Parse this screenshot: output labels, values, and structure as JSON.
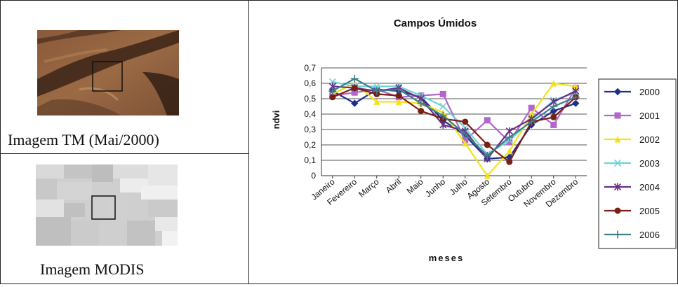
{
  "left": {
    "tm_caption": "Imagem TM (Mai/2000)",
    "modis_caption": "Imagem MODIS"
  },
  "colors": {
    "2000": "#1f2f8c",
    "2001": "#b066cc",
    "2002": "#f2e21a",
    "2003": "#6fd3d8",
    "2004": "#6a2f86",
    "2005": "#7a1f16",
    "2006": "#3b7f88"
  },
  "chart_data": {
    "type": "line",
    "title": "Campos Úmidos",
    "xlabel": "meses",
    "ylabel": "ndvi",
    "ylim": [
      0,
      0.7
    ],
    "yticks": [
      "0",
      "0,1",
      "0,2",
      "0,3",
      "0,4",
      "0,5",
      "0,6",
      "0,7"
    ],
    "grid": true,
    "legend_position": "right",
    "categories": [
      "Janeiro",
      "Fevereiro",
      "Março",
      "Abril",
      "Maio",
      "Junho",
      "Julho",
      "Agosto",
      "Setembro",
      "Outubro",
      "Novembro",
      "Dezembro"
    ],
    "series": [
      {
        "name": "2000",
        "marker": "diamond",
        "values": [
          0.55,
          0.47,
          0.56,
          0.55,
          0.51,
          0.36,
          0.26,
          0.11,
          0.12,
          0.33,
          0.42,
          0.47
        ]
      },
      {
        "name": "2001",
        "marker": "square",
        "values": [
          0.52,
          0.54,
          0.56,
          0.51,
          0.52,
          0.53,
          0.23,
          0.36,
          0.22,
          0.44,
          0.33,
          0.57
        ]
      },
      {
        "name": "2002",
        "marker": "triangle",
        "values": [
          0.53,
          0.6,
          0.48,
          0.48,
          0.47,
          0.41,
          0.21,
          0.0,
          0.16,
          0.4,
          0.6,
          0.58
        ]
      },
      {
        "name": "2003",
        "marker": "x",
        "values": [
          0.61,
          0.58,
          0.58,
          0.58,
          0.52,
          0.45,
          0.31,
          0.14,
          0.23,
          0.36,
          0.49,
          0.54
        ]
      },
      {
        "name": "2004",
        "marker": "star",
        "values": [
          0.58,
          0.57,
          0.55,
          0.57,
          0.5,
          0.33,
          0.29,
          0.11,
          0.29,
          0.37,
          0.48,
          0.55
        ]
      },
      {
        "name": "2005",
        "marker": "circle",
        "values": [
          0.51,
          0.57,
          0.53,
          0.52,
          0.42,
          0.37,
          0.35,
          0.2,
          0.09,
          0.35,
          0.38,
          0.51
        ]
      },
      {
        "name": "2006",
        "marker": "plus",
        "values": [
          0.55,
          0.63,
          0.55,
          0.56,
          0.47,
          0.39,
          0.27,
          0.13,
          0.25,
          0.35,
          0.45,
          0.51
        ]
      }
    ]
  }
}
